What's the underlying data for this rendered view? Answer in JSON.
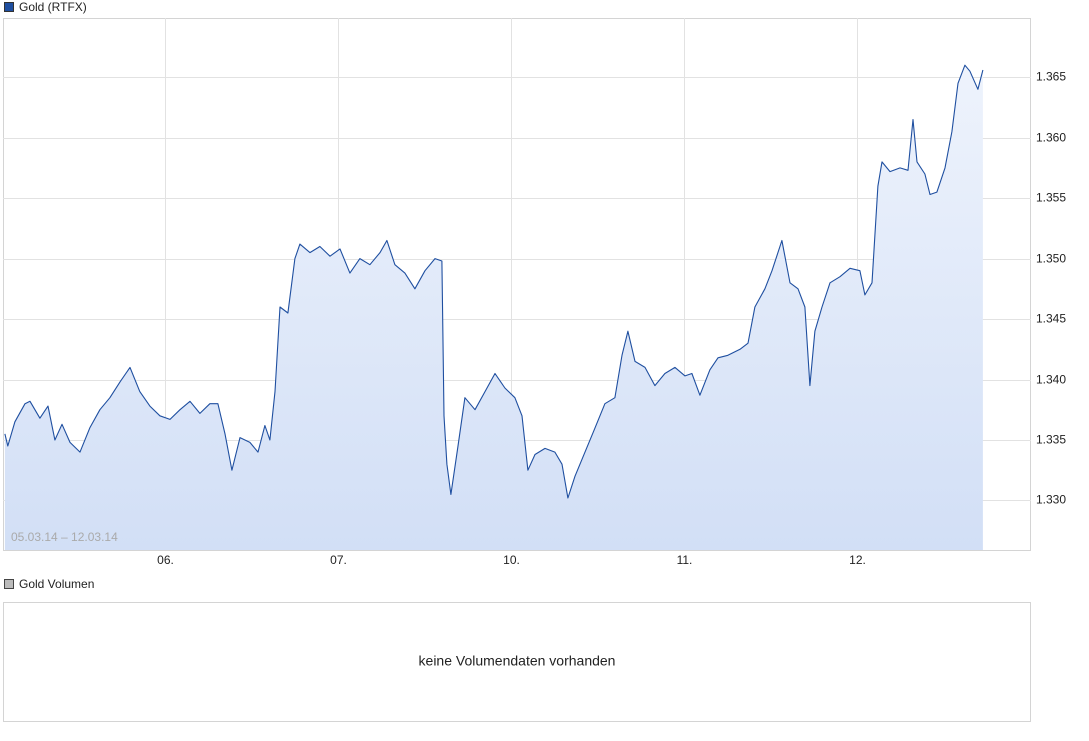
{
  "chart_data": {
    "type": "line",
    "subtitle": "05.03.14 – 12.03.14",
    "series": [
      {
        "name": "Gold (RTFX)",
        "color": "#1f4fa0",
        "x": [
          0.075,
          0.092,
          0.133,
          0.191,
          0.22,
          0.277,
          0.324,
          0.364,
          0.405,
          0.451,
          0.509,
          0.566,
          0.624,
          0.682,
          0.74,
          0.798,
          0.855,
          0.913,
          0.971,
          1.029,
          1.087,
          1.145,
          1.202,
          1.26,
          1.306,
          1.347,
          1.387,
          1.434,
          1.491,
          1.538,
          1.578,
          1.607,
          1.636,
          1.665,
          1.711,
          1.751,
          1.78,
          1.838,
          1.896,
          1.954,
          2.012,
          2.069,
          2.127,
          2.185,
          2.243,
          2.283,
          2.329,
          2.387,
          2.445,
          2.503,
          2.561,
          2.601,
          2.613,
          2.63,
          2.653,
          2.694,
          2.734,
          2.792,
          2.85,
          2.908,
          2.965,
          3.023,
          3.064,
          3.098,
          3.139,
          3.197,
          3.254,
          3.295,
          3.329,
          3.37,
          3.428,
          3.486,
          3.543,
          3.601,
          3.642,
          3.676,
          3.717,
          3.775,
          3.832,
          3.89,
          3.948,
          4.006,
          4.046,
          4.092,
          4.15,
          4.197,
          4.254,
          4.324,
          4.37,
          4.41,
          4.468,
          4.509,
          4.566,
          4.613,
          4.659,
          4.699,
          4.728,
          4.757,
          4.798,
          4.844,
          4.902,
          4.96,
          5.017,
          5.046,
          5.087,
          5.121,
          5.145,
          5.191,
          5.249,
          5.295,
          5.324,
          5.347,
          5.393,
          5.422,
          5.462,
          5.509,
          5.549,
          5.584,
          5.624,
          5.653,
          5.699,
          5.728
        ],
        "values": [
          1.3355,
          1.3345,
          1.3365,
          1.338,
          1.3382,
          1.3368,
          1.3378,
          1.335,
          1.3363,
          1.3348,
          1.334,
          1.336,
          1.3375,
          1.3385,
          1.3398,
          1.341,
          1.339,
          1.3378,
          1.337,
          1.3367,
          1.3375,
          1.3382,
          1.3372,
          1.338,
          1.338,
          1.3355,
          1.3325,
          1.3352,
          1.3348,
          1.334,
          1.3362,
          1.335,
          1.339,
          1.346,
          1.3455,
          1.35,
          1.3512,
          1.3505,
          1.351,
          1.3502,
          1.3508,
          1.3488,
          1.35,
          1.3495,
          1.3505,
          1.3515,
          1.3495,
          1.3488,
          1.3475,
          1.349,
          1.35,
          1.3498,
          1.337,
          1.333,
          1.3305,
          1.3345,
          1.3385,
          1.3375,
          1.339,
          1.3405,
          1.3393,
          1.3385,
          1.337,
          1.3325,
          1.3338,
          1.3343,
          1.334,
          1.333,
          1.3302,
          1.332,
          1.334,
          1.336,
          1.338,
          1.3385,
          1.342,
          1.344,
          1.3415,
          1.341,
          1.3395,
          1.3405,
          1.341,
          1.3403,
          1.3405,
          1.3387,
          1.3408,
          1.3418,
          1.342,
          1.3425,
          1.343,
          1.346,
          1.3475,
          1.349,
          1.3515,
          1.348,
          1.3475,
          1.346,
          1.3395,
          1.344,
          1.346,
          1.348,
          1.3485,
          1.3492,
          1.349,
          1.347,
          1.348,
          1.356,
          1.358,
          1.3572,
          1.3575,
          1.3573,
          1.3615,
          1.358,
          1.357,
          1.3553,
          1.3555,
          1.3575,
          1.3605,
          1.3645,
          1.366,
          1.3655,
          1.364,
          1.3656
        ]
      }
    ],
    "xlim": [
      0.064,
      6.006
    ],
    "xticks": [
      {
        "value": 1,
        "label": "06."
      },
      {
        "value": 2,
        "label": "07."
      },
      {
        "value": 3,
        "label": "10."
      },
      {
        "value": 4,
        "label": "11."
      },
      {
        "value": 5,
        "label": "12."
      }
    ],
    "ylim": [
      1.3259,
      1.3699
    ],
    "yticks": [
      {
        "value": 1.33,
        "label": "1.330"
      },
      1.335,
      {
        "value": 1.34,
        "label": "1.340"
      },
      1.345,
      {
        "value": 1.35,
        "label": "1.350"
      },
      1.355,
      {
        "value": 1.36,
        "label": "1.360"
      },
      1.365
    ],
    "grid": true
  },
  "volume_panel": {
    "legend": "Gold Volumen",
    "message": "keine Volumendaten vorhanden"
  }
}
